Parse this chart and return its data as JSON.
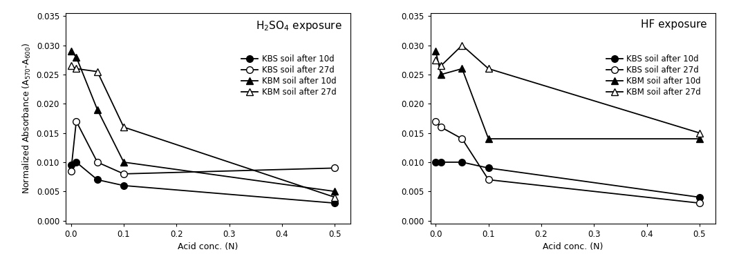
{
  "h2so4": {
    "title": "H$_2$SO$_4$ exposure",
    "x": [
      0.0,
      0.01,
      0.05,
      0.1,
      0.5
    ],
    "KBS_10d": [
      0.0095,
      0.01,
      0.007,
      0.006,
      0.003
    ],
    "KBS_27d": [
      0.0085,
      0.017,
      0.01,
      0.008,
      0.009
    ],
    "KBM_10d": [
      0.029,
      0.028,
      0.019,
      0.01,
      0.005
    ],
    "KBM_27d": [
      0.0265,
      0.026,
      0.0255,
      0.016,
      0.004
    ]
  },
  "hf": {
    "title": "HF exposure",
    "x": [
      0.0,
      0.01,
      0.05,
      0.1,
      0.5
    ],
    "KBS_10d": [
      0.01,
      0.01,
      0.01,
      0.009,
      0.004
    ],
    "KBS_27d": [
      0.017,
      0.016,
      0.014,
      0.007,
      0.003
    ],
    "KBM_10d": [
      0.029,
      0.025,
      0.026,
      0.014,
      0.014
    ],
    "KBM_27d": [
      0.0275,
      0.0265,
      0.03,
      0.026,
      0.015
    ]
  },
  "legend_labels": [
    "KBS soil after 10d",
    "KBS soil after 27d",
    "KBM soil after 10d",
    "KBM soil after 27d"
  ],
  "xlabel": "Acid conc. (N)",
  "ylabel": "Normalized Absorbance (A$_{570}$-A$_{600}$)",
  "ylim": [
    0.0,
    0.035
  ],
  "yticks": [
    0.0,
    0.005,
    0.01,
    0.015,
    0.02,
    0.025,
    0.03,
    0.035
  ],
  "xticks": [
    0.0,
    0.1,
    0.2,
    0.3,
    0.4,
    0.5
  ],
  "markersize": 7,
  "linewidth": 1.3,
  "title_fontsize": 11,
  "label_fontsize": 9,
  "tick_fontsize": 8.5,
  "legend_fontsize": 8.5
}
